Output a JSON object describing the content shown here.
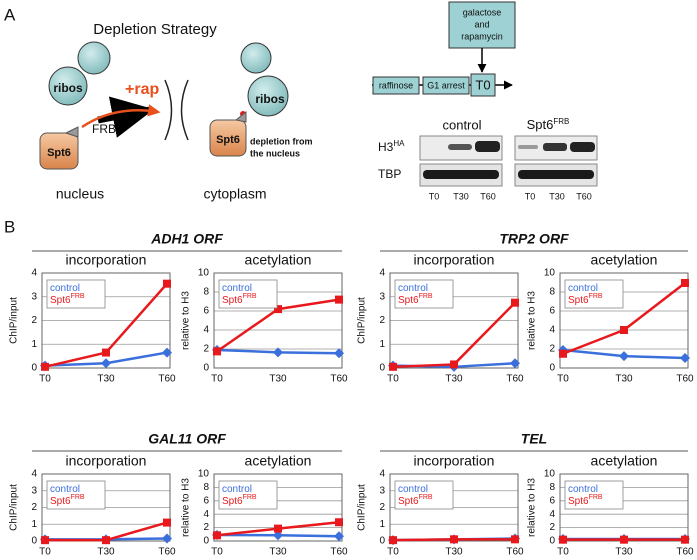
{
  "panel_a": {
    "label": "A",
    "strategy": {
      "title": "Depletion Strategy",
      "ribosome_labels": [
        "ribos",
        "ribos"
      ],
      "drug": "+rap",
      "tag": "FRB",
      "protein_labels": [
        "Spt6",
        "Spt6"
      ],
      "compartments": [
        "nucleus",
        "cytoplasm"
      ],
      "note": [
        "depletion from",
        "the nucleus"
      ]
    },
    "timeline": {
      "treatment": [
        "galactose",
        "and",
        "rapamycin"
      ],
      "steps": [
        "raffinose",
        "G1 arrest",
        "T0"
      ]
    },
    "blot": {
      "strains": [
        {
          "name": "control"
        },
        {
          "name": "Spt6",
          "superscript": "FRB"
        }
      ],
      "rows": [
        {
          "name": "H3",
          "superscript": "HA"
        },
        {
          "name": "TBP"
        }
      ],
      "lanes": [
        "T0",
        "T30",
        "T60"
      ]
    }
  },
  "panel_b": {
    "label": "B",
    "groups": [
      "ADH1 ORF",
      "TRP2 ORF",
      "GAL11 ORF",
      "TEL"
    ]
  },
  "chart_data": [
    {
      "type": "line",
      "title": "incorporation",
      "y_label": "ChIP/input",
      "categories": [
        "T0",
        "T30",
        "T60"
      ],
      "series": [
        {
          "name": "control",
          "color": "#3b6fdc",
          "marker": "diamond",
          "values": [
            0.1,
            0.2,
            0.65
          ]
        },
        {
          "name": "Spt6",
          "name_superscript": "FRB",
          "color": "#e8191c",
          "marker": "square",
          "values": [
            0.05,
            0.65,
            3.55
          ]
        }
      ],
      "ylim": [
        0,
        4
      ],
      "yticks": [
        0,
        1,
        2,
        3,
        4
      ],
      "grid": true,
      "legend": "upper left"
    },
    {
      "type": "line",
      "title": "acetylation",
      "y_label": "relative to H3",
      "categories": [
        "T0",
        "T30",
        "T60"
      ],
      "series": [
        {
          "name": "control",
          "color": "#3b6fdc",
          "marker": "diamond",
          "values": [
            1.9,
            1.65,
            1.55
          ]
        },
        {
          "name": "Spt6",
          "name_superscript": "FRB",
          "color": "#e8191c",
          "marker": "square",
          "values": [
            1.75,
            6.2,
            7.2
          ]
        }
      ],
      "ylim": [
        0,
        10
      ],
      "yticks": [
        0,
        2,
        4,
        6,
        8,
        10
      ],
      "grid": true,
      "legend": "upper left"
    },
    {
      "type": "line",
      "title": "incorporation",
      "y_label": "ChIP/input",
      "categories": [
        "T0",
        "T30",
        "T60"
      ],
      "series": [
        {
          "name": "control",
          "color": "#3b6fdc",
          "marker": "diamond",
          "values": [
            0.1,
            0.05,
            0.2
          ]
        },
        {
          "name": "Spt6",
          "name_superscript": "FRB",
          "color": "#e8191c",
          "marker": "square",
          "values": [
            0.05,
            0.15,
            2.75
          ]
        }
      ],
      "ylim": [
        0,
        4
      ],
      "yticks": [
        0,
        1,
        2,
        3,
        4
      ],
      "grid": true,
      "legend": "upper left"
    },
    {
      "type": "line",
      "title": "acetylation",
      "y_label": "relative to H3",
      "categories": [
        "T0",
        "T30",
        "T60"
      ],
      "series": [
        {
          "name": "control",
          "color": "#3b6fdc",
          "marker": "diamond",
          "values": [
            1.9,
            1.25,
            1.05
          ]
        },
        {
          "name": "Spt6",
          "name_superscript": "FRB",
          "color": "#e8191c",
          "marker": "square",
          "values": [
            1.5,
            4.0,
            8.95
          ]
        }
      ],
      "ylim": [
        0,
        10
      ],
      "yticks": [
        0,
        2,
        4,
        6,
        8,
        10
      ],
      "grid": true,
      "legend": "upper left"
    },
    {
      "type": "line",
      "title": "incorporation",
      "y_label": "ChIP/input",
      "categories": [
        "T0",
        "T30",
        "T60"
      ],
      "series": [
        {
          "name": "control",
          "color": "#3b6fdc",
          "marker": "diamond",
          "values": [
            0.1,
            0.1,
            0.15
          ]
        },
        {
          "name": "Spt6",
          "name_superscript": "FRB",
          "color": "#e8191c",
          "marker": "square",
          "values": [
            0.05,
            0.05,
            1.1
          ]
        }
      ],
      "ylim": [
        0,
        4
      ],
      "yticks": [
        0,
        1,
        2,
        3,
        4
      ],
      "grid": true,
      "legend": "upper left"
    },
    {
      "type": "line",
      "title": "acetylation",
      "y_label": "relative to H3",
      "categories": [
        "T0",
        "T30",
        "T60"
      ],
      "series": [
        {
          "name": "control",
          "color": "#3b6fdc",
          "marker": "diamond",
          "values": [
            0.9,
            0.85,
            0.7
          ]
        },
        {
          "name": "Spt6",
          "name_superscript": "FRB",
          "color": "#e8191c",
          "marker": "square",
          "values": [
            0.85,
            1.85,
            2.8
          ]
        }
      ],
      "ylim": [
        0,
        10
      ],
      "yticks": [
        0,
        2,
        4,
        6,
        8,
        10
      ],
      "grid": true,
      "legend": "upper left"
    },
    {
      "type": "line",
      "title": "incorporation",
      "y_label": "ChIP/input",
      "categories": [
        "T0",
        "T30",
        "T60"
      ],
      "series": [
        {
          "name": "control",
          "color": "#3b6fdc",
          "marker": "diamond",
          "values": [
            0.05,
            0.1,
            0.15
          ]
        },
        {
          "name": "Spt6",
          "name_superscript": "FRB",
          "color": "#e8191c",
          "marker": "square",
          "values": [
            0.05,
            0.1,
            0.1
          ]
        }
      ],
      "ylim": [
        0,
        4
      ],
      "yticks": [
        0,
        1,
        2,
        3,
        4
      ],
      "grid": true,
      "legend": "upper left"
    },
    {
      "type": "line",
      "title": "acetylation",
      "y_label": "relative to H3",
      "categories": [
        "T0",
        "T30",
        "T60"
      ],
      "series": [
        {
          "name": "control",
          "color": "#3b6fdc",
          "marker": "diamond",
          "values": [
            0.3,
            0.3,
            0.3
          ]
        },
        {
          "name": "Spt6",
          "name_superscript": "FRB",
          "color": "#e8191c",
          "marker": "square",
          "values": [
            0.2,
            0.2,
            0.2
          ]
        }
      ],
      "ylim": [
        0,
        10
      ],
      "yticks": [
        0,
        2,
        4,
        6,
        8,
        10
      ],
      "grid": true,
      "legend": "upper left"
    }
  ]
}
